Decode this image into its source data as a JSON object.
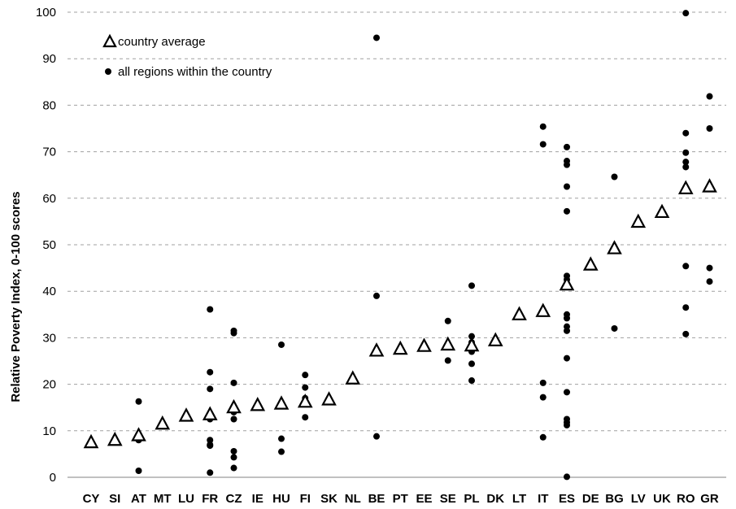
{
  "chart_data": {
    "type": "scatter",
    "ylabel": "Relative Poverty Index, 0-100 scores",
    "ylim": [
      0,
      100
    ],
    "yticks": [
      0,
      10,
      20,
      30,
      40,
      50,
      60,
      70,
      80,
      90,
      100
    ],
    "grid": true,
    "legend_position": "top-left",
    "categories": [
      "CY",
      "SI",
      "AT",
      "MT",
      "LU",
      "FR",
      "CZ",
      "IE",
      "HU",
      "FI",
      "SK",
      "NL",
      "BE",
      "PT",
      "EE",
      "SE",
      "PL",
      "DK",
      "LT",
      "IT",
      "ES",
      "DE",
      "BG",
      "LV",
      "UK",
      "RO",
      "GR"
    ],
    "series": [
      {
        "name": "country average",
        "marker": "triangle-open",
        "values": [
          7.5,
          8,
          9,
          11.5,
          13.2,
          13.5,
          15,
          15.5,
          15.8,
          16.2,
          16.7,
          21.2,
          27.2,
          27.6,
          28.2,
          28.5,
          28.3,
          29.4,
          35,
          35.7,
          41.4,
          45.7,
          49.2,
          54.9,
          57,
          62.1,
          62.5
        ]
      },
      {
        "name": "all regions within the country",
        "marker": "dot",
        "points": [
          [
            "CY",
            7.5
          ],
          [
            "SI",
            8
          ],
          [
            "MT",
            11.5
          ],
          [
            "LU",
            13.2
          ],
          [
            "AT",
            16.3
          ],
          [
            "AT",
            8
          ],
          [
            "AT",
            1.4
          ],
          [
            "FR",
            36.1
          ],
          [
            "FR",
            22.6
          ],
          [
            "FR",
            19
          ],
          [
            "FR",
            12.5
          ],
          [
            "FR",
            8
          ],
          [
            "FR",
            7
          ],
          [
            "FR",
            6.8
          ],
          [
            "FR",
            1
          ],
          [
            "CZ",
            31.5
          ],
          [
            "CZ",
            31
          ],
          [
            "CZ",
            20.3
          ],
          [
            "CZ",
            14
          ],
          [
            "CZ",
            12.5
          ],
          [
            "CZ",
            5.6
          ],
          [
            "CZ",
            4.3
          ],
          [
            "CZ",
            2
          ],
          [
            "IE",
            15.5
          ],
          [
            "HU",
            28.5
          ],
          [
            "HU",
            8.3
          ],
          [
            "HU",
            5.5
          ],
          [
            "FI",
            22
          ],
          [
            "FI",
            19.3
          ],
          [
            "FI",
            17
          ],
          [
            "FI",
            12.9
          ],
          [
            "SK",
            16.7
          ],
          [
            "NL",
            21.2
          ],
          [
            "BE",
            94.5
          ],
          [
            "BE",
            39
          ],
          [
            "BE",
            8.8
          ],
          [
            "PT",
            27.6
          ],
          [
            "EE",
            28.2
          ],
          [
            "SE",
            33.6
          ],
          [
            "SE",
            28.5
          ],
          [
            "SE",
            25.1
          ],
          [
            "PL",
            41.2
          ],
          [
            "PL",
            30.3
          ],
          [
            "PL",
            29
          ],
          [
            "PL",
            28.3
          ],
          [
            "PL",
            27
          ],
          [
            "PL",
            24.4
          ],
          [
            "PL",
            20.8
          ],
          [
            "DK",
            29.4
          ],
          [
            "LT",
            35
          ],
          [
            "IT",
            75.4
          ],
          [
            "IT",
            71.6
          ],
          [
            "IT",
            20.3
          ],
          [
            "IT",
            17.2
          ],
          [
            "IT",
            8.6
          ],
          [
            "ES",
            71
          ],
          [
            "ES",
            68
          ],
          [
            "ES",
            67.2
          ],
          [
            "ES",
            62.5
          ],
          [
            "ES",
            57.2
          ],
          [
            "ES",
            43.3
          ],
          [
            "ES",
            42.5
          ],
          [
            "ES",
            35
          ],
          [
            "ES",
            34.2
          ],
          [
            "ES",
            32.4
          ],
          [
            "ES",
            31.5
          ],
          [
            "ES",
            25.6
          ],
          [
            "ES",
            18.3
          ],
          [
            "ES",
            12.5
          ],
          [
            "ES",
            11.8
          ],
          [
            "ES",
            11.2
          ],
          [
            "ES",
            0.1
          ],
          [
            "DE",
            45.7
          ],
          [
            "BG",
            64.6
          ],
          [
            "BG",
            32
          ],
          [
            "LV",
            54.9
          ],
          [
            "UK",
            57
          ],
          [
            "RO",
            99.8
          ],
          [
            "RO",
            74
          ],
          [
            "RO",
            69.8
          ],
          [
            "RO",
            67.8
          ],
          [
            "RO",
            66.7
          ],
          [
            "RO",
            45.4
          ],
          [
            "RO",
            36.5
          ],
          [
            "RO",
            30.8
          ],
          [
            "GR",
            81.9
          ],
          [
            "GR",
            75
          ],
          [
            "GR",
            45
          ],
          [
            "GR",
            42.1
          ]
        ]
      }
    ]
  },
  "legend": {
    "avg_label": "country average",
    "reg_label": "all regions within the country"
  }
}
